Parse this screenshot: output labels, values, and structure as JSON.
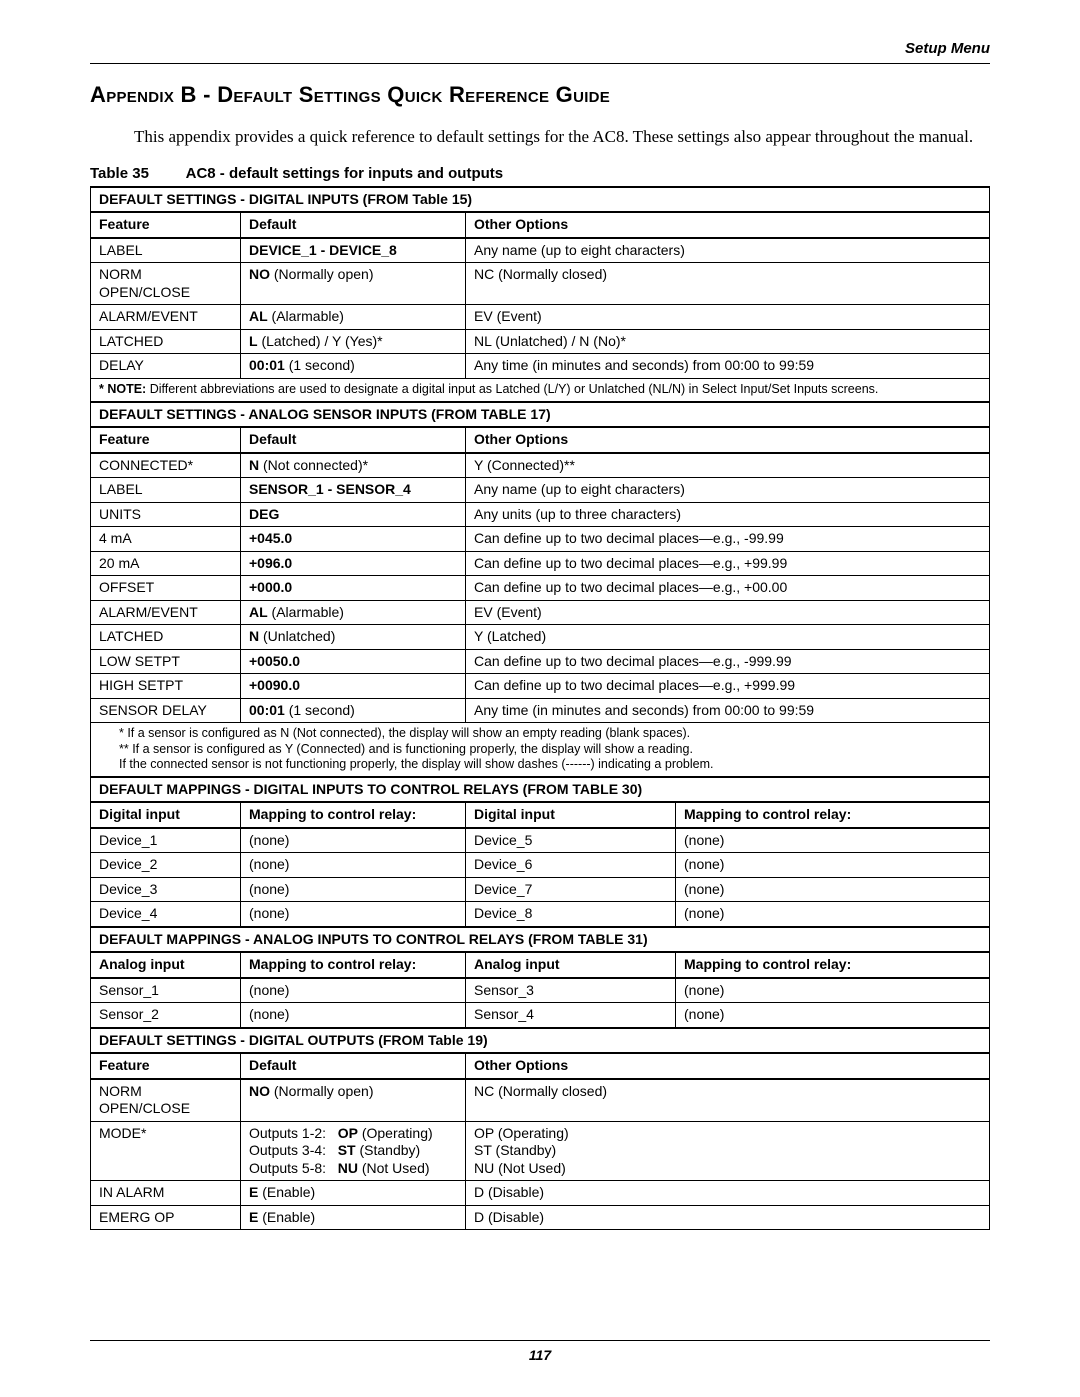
{
  "header": {
    "setup_menu": "Setup Menu"
  },
  "title": "Appendix B - Default Settings Quick Reference Guide",
  "intro": "This appendix provides a quick reference to default settings for the AC8. These settings also appear throughout the manual.",
  "table_caption_num": "Table 35",
  "table_caption_text": "AC8 - default settings for inputs and outputs",
  "sec1_title": "DEFAULT SETTINGS - DIGITAL INPUTS (FROM Table 15)",
  "sec1_cols": {
    "a": "Feature",
    "b": "Default",
    "c": "Other Options"
  },
  "sec1": [
    {
      "f": "LABEL",
      "d": "DEVICE_1 - DEVICE_8",
      "d_bold": true,
      "o": "Any name (up to eight characters)"
    },
    {
      "f": "NORM OPEN/CLOSE",
      "d_b": "NO",
      "d_r": " (Normally open)",
      "o": "NC (Normally closed)"
    },
    {
      "f": "ALARM/EVENT",
      "d_b": "AL",
      "d_r": " (Alarmable)",
      "o": "EV (Event)"
    },
    {
      "f": "LATCHED",
      "d_b": "L",
      "d_r": " (Latched) / Y (Yes)*",
      "o": "NL (Unlatched) / N (No)*"
    },
    {
      "f": "DELAY",
      "d_b": "00:01",
      "d_r": " (1 second)",
      "o": "Any time (in minutes and seconds) from 00:00 to 99:59"
    }
  ],
  "sec1_note_lead": "* NOTE:",
  "sec1_note_rest": " Different abbreviations are used to designate a digital input as Latched (L/Y) or Unlatched (NL/N) in Select Input/Set Inputs screens.",
  "sec2_title": "DEFAULT SETTINGS - ANALOG SENSOR INPUTS (FROM TABLE 17)",
  "sec2_cols": {
    "a": "Feature",
    "b": "Default",
    "c": "Other Options"
  },
  "sec2": [
    {
      "f": "CONNECTED*",
      "d_b": "N",
      "d_r": " (Not connected)*",
      "o": "Y (Connected)**"
    },
    {
      "f": "LABEL",
      "d": "SENSOR_1 - SENSOR_4",
      "d_bold": true,
      "o": "Any name (up to eight characters)"
    },
    {
      "f": "UNITS",
      "d": "DEG",
      "d_bold": true,
      "o": "Any units (up to three characters)"
    },
    {
      "f": "4 mA",
      "d": "+045.0",
      "d_bold": true,
      "o": "Can define up to two decimal places—e.g., -99.99"
    },
    {
      "f": "20 mA",
      "d": "+096.0",
      "d_bold": true,
      "o": "Can define up to two decimal places—e.g., +99.99"
    },
    {
      "f": "OFFSET",
      "d": "+000.0",
      "d_bold": true,
      "o": "Can define up to two decimal places—e.g., +00.00"
    },
    {
      "f": "ALARM/EVENT",
      "d_b": "AL",
      "d_r": " (Alarmable)",
      "o": "EV (Event)"
    },
    {
      "f": "LATCHED",
      "d_b": "N",
      "d_r": " (Unlatched)",
      "o": "Y (Latched)"
    },
    {
      "f": "LOW SETPT",
      "d": "+0050.0",
      "d_bold": true,
      "o": "Can define up to two decimal places—e.g., -999.99"
    },
    {
      "f": "HIGH SETPT",
      "d": "+0090.0",
      "d_bold": true,
      "o": "Can define up to two decimal places—e.g., +999.99"
    },
    {
      "f": "SENSOR DELAY",
      "d_b": "00:01",
      "d_r": " (1 second)",
      "o": "Any time (in minutes and seconds) from 00:00 to 99:59"
    }
  ],
  "sec2_foot": {
    "l1": "*   If a sensor is configured as N (Not connected), the display will show an empty reading (blank spaces).",
    "l2": "**  If a sensor is configured as Y (Connected) and is functioning properly, the display will show a reading.",
    "l3": "    If the connected sensor is not functioning properly, the display will show dashes (------) indicating a problem."
  },
  "sec3_title": "DEFAULT MAPPINGS - DIGITAL INPUTS TO CONTROL RELAYS (FROM TABLE 30)",
  "sec3_cols": {
    "a": "Digital input",
    "b": "Mapping to control relay:",
    "c": "Digital input",
    "d": "Mapping to control relay:"
  },
  "sec3": [
    {
      "a": "Device_1",
      "b": "(none)",
      "c": "Device_5",
      "d": "(none)"
    },
    {
      "a": "Device_2",
      "b": "(none)",
      "c": "Device_6",
      "d": "(none)"
    },
    {
      "a": "Device_3",
      "b": "(none)",
      "c": "Device_7",
      "d": "(none)"
    },
    {
      "a": "Device_4",
      "b": "(none)",
      "c": "Device_8",
      "d": "(none)"
    }
  ],
  "sec4_title": "DEFAULT MAPPINGS - ANALOG INPUTS TO CONTROL RELAYS (FROM TABLE 31)",
  "sec4_cols": {
    "a": "Analog input",
    "b": "Mapping to control relay:",
    "c": "Analog input",
    "d": "Mapping to control relay:"
  },
  "sec4": [
    {
      "a": "Sensor_1",
      "b": "(none)",
      "c": "Sensor_3",
      "d": "(none)"
    },
    {
      "a": "Sensor_2",
      "b": "(none)",
      "c": "Sensor_4",
      "d": "(none)"
    }
  ],
  "sec5_title": "DEFAULT SETTINGS - DIGITAL OUTPUTS (FROM Table 19)",
  "sec5_cols": {
    "a": "Feature",
    "b": "Default",
    "c": "Other Options"
  },
  "sec5": [
    {
      "f": "NORM OPEN/CLOSE",
      "d_b": "NO",
      "d_r": " (Normally open)",
      "o": "NC (Normally closed)"
    }
  ],
  "sec5_mode": {
    "f": "MODE*",
    "d1a": "Outputs 1-2:",
    "d1b": "OP",
    "d1c": " (Operating)",
    "d2a": "Outputs 3-4:",
    "d2b": "ST",
    "d2c": " (Standby)",
    "d3a": "Outputs 5-8:",
    "d3b": "NU",
    "d3c": " (Not Used)",
    "o1": "OP (Operating)",
    "o2": "ST (Standby)",
    "o3": "NU (Not Used)"
  },
  "sec5_tail": [
    {
      "f": "IN ALARM",
      "d_b": "E",
      "d_r": " (Enable)",
      "o": "D (Disable)"
    },
    {
      "f": "EMERG OP",
      "d_b": "E",
      "d_r": " (Enable)",
      "o": "D (Disable)"
    }
  ],
  "page_num": "117"
}
